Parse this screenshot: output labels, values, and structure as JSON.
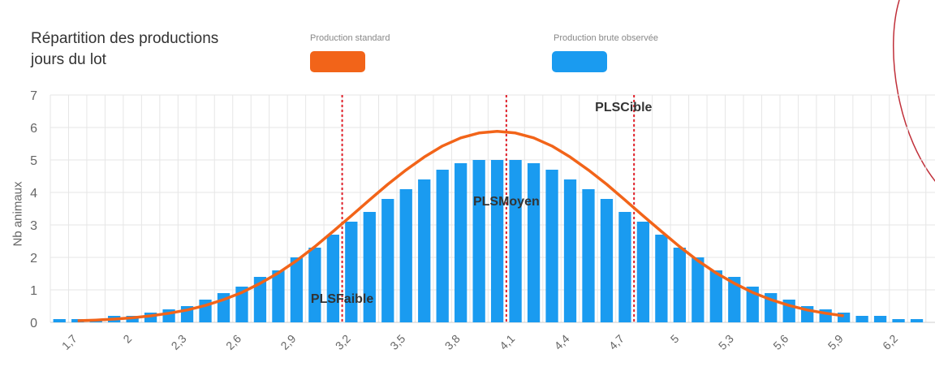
{
  "chart_data": {
    "type": "bar",
    "title_lines": [
      "Répartition des productions",
      "jours du lot"
    ],
    "ylabel": "Nb animaux",
    "xlabel": "",
    "ylim": [
      0,
      7
    ],
    "yticks": [
      0,
      1,
      2,
      3,
      4,
      5,
      6,
      7
    ],
    "xlim": [
      1.55,
      6.4
    ],
    "xtick_labels": [
      "1,7",
      "2",
      "2,3",
      "2,6",
      "2,9",
      "3,2",
      "3,5",
      "3,8",
      "4,1",
      "4,4",
      "4,7",
      "5",
      "5,3",
      "5,6",
      "5,9",
      "6,2"
    ],
    "xtick_values": [
      1.7,
      2.0,
      2.3,
      2.6,
      2.9,
      3.2,
      3.5,
      3.8,
      4.1,
      4.4,
      4.7,
      5.0,
      5.3,
      5.6,
      5.9,
      6.2
    ],
    "grid": true,
    "legend_position": "top",
    "series": [
      {
        "name": "Production standard",
        "kind": "line",
        "color": "#f26419",
        "x": [
          1.7,
          1.8,
          1.9,
          2.0,
          2.1,
          2.2,
          2.3,
          2.4,
          2.5,
          2.6,
          2.7,
          2.8,
          2.9,
          3.0,
          3.1,
          3.2,
          3.3,
          3.4,
          3.5,
          3.6,
          3.7,
          3.8,
          3.9,
          4.0,
          4.1,
          4.2,
          4.3,
          4.4,
          4.5,
          4.6,
          4.7,
          4.8,
          4.9,
          5.0,
          5.1,
          5.2,
          5.3,
          5.4,
          5.5,
          5.6,
          5.7,
          5.8,
          5.9
        ],
        "y": [
          0.05,
          0.07,
          0.1,
          0.14,
          0.2,
          0.28,
          0.38,
          0.52,
          0.7,
          0.92,
          1.2,
          1.52,
          1.9,
          2.33,
          2.8,
          3.28,
          3.77,
          4.25,
          4.69,
          5.09,
          5.43,
          5.68,
          5.83,
          5.88,
          5.83,
          5.68,
          5.43,
          5.09,
          4.69,
          4.25,
          3.77,
          3.28,
          2.8,
          2.33,
          1.9,
          1.52,
          1.2,
          0.92,
          0.7,
          0.52,
          0.38,
          0.28,
          0.2
        ]
      },
      {
        "name": "Production brute observée",
        "kind": "bar",
        "color": "#1a9bf0",
        "x": [
          1.6,
          1.7,
          1.8,
          1.9,
          2.0,
          2.1,
          2.2,
          2.3,
          2.4,
          2.5,
          2.6,
          2.7,
          2.8,
          2.9,
          3.0,
          3.1,
          3.2,
          3.3,
          3.4,
          3.5,
          3.6,
          3.7,
          3.8,
          3.9,
          4.0,
          4.1,
          4.2,
          4.3,
          4.4,
          4.5,
          4.6,
          4.7,
          4.8,
          4.9,
          5.0,
          5.1,
          5.2,
          5.3,
          5.4,
          5.5,
          5.6,
          5.7,
          5.8,
          5.9,
          6.0,
          6.1,
          6.2,
          6.3
        ],
        "values": [
          0.1,
          0.1,
          0.1,
          0.2,
          0.2,
          0.3,
          0.4,
          0.5,
          0.7,
          0.9,
          1.1,
          1.4,
          1.6,
          2.0,
          2.3,
          2.7,
          3.1,
          3.4,
          3.8,
          4.1,
          4.4,
          4.7,
          4.9,
          5.0,
          5.0,
          5.0,
          4.9,
          4.7,
          4.4,
          4.1,
          3.8,
          3.4,
          3.1,
          2.7,
          2.3,
          2.0,
          1.6,
          1.4,
          1.1,
          0.9,
          0.7,
          0.5,
          0.4,
          0.3,
          0.2,
          0.2,
          0.1,
          0.1
        ]
      }
    ],
    "reference_lines": [
      {
        "label": "PLSFaible",
        "x": 3.15,
        "color": "#e0202a"
      },
      {
        "label": "PLSMoyen",
        "x": 4.05,
        "color": "#e0202a"
      },
      {
        "label": "PLSCible",
        "x": 4.75,
        "color": "#e0202a"
      }
    ],
    "reference_label_y": [
      0.6,
      3.6,
      6.5
    ]
  }
}
